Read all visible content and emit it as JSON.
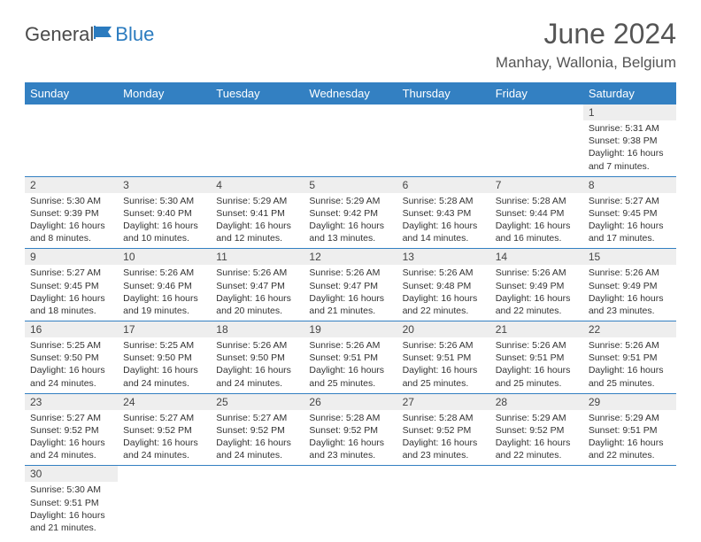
{
  "logo": {
    "text1": "General",
    "text2": "Blue"
  },
  "title": "June 2024",
  "location": "Manhay, Wallonia, Belgium",
  "colors": {
    "header_bg": "#3380c2",
    "header_text": "#ffffff",
    "daynum_bg": "#eeeeee",
    "border": "#3380c2",
    "logo_blue": "#2b7bbf",
    "logo_gray": "#4a4a4a"
  },
  "weekdays": [
    "Sunday",
    "Monday",
    "Tuesday",
    "Wednesday",
    "Thursday",
    "Friday",
    "Saturday"
  ],
  "weeks": [
    [
      null,
      null,
      null,
      null,
      null,
      null,
      {
        "n": "1",
        "sr": "Sunrise: 5:31 AM",
        "ss": "Sunset: 9:38 PM",
        "dl": "Daylight: 16 hours and 7 minutes."
      }
    ],
    [
      {
        "n": "2",
        "sr": "Sunrise: 5:30 AM",
        "ss": "Sunset: 9:39 PM",
        "dl": "Daylight: 16 hours and 8 minutes."
      },
      {
        "n": "3",
        "sr": "Sunrise: 5:30 AM",
        "ss": "Sunset: 9:40 PM",
        "dl": "Daylight: 16 hours and 10 minutes."
      },
      {
        "n": "4",
        "sr": "Sunrise: 5:29 AM",
        "ss": "Sunset: 9:41 PM",
        "dl": "Daylight: 16 hours and 12 minutes."
      },
      {
        "n": "5",
        "sr": "Sunrise: 5:29 AM",
        "ss": "Sunset: 9:42 PM",
        "dl": "Daylight: 16 hours and 13 minutes."
      },
      {
        "n": "6",
        "sr": "Sunrise: 5:28 AM",
        "ss": "Sunset: 9:43 PM",
        "dl": "Daylight: 16 hours and 14 minutes."
      },
      {
        "n": "7",
        "sr": "Sunrise: 5:28 AM",
        "ss": "Sunset: 9:44 PM",
        "dl": "Daylight: 16 hours and 16 minutes."
      },
      {
        "n": "8",
        "sr": "Sunrise: 5:27 AM",
        "ss": "Sunset: 9:45 PM",
        "dl": "Daylight: 16 hours and 17 minutes."
      }
    ],
    [
      {
        "n": "9",
        "sr": "Sunrise: 5:27 AM",
        "ss": "Sunset: 9:45 PM",
        "dl": "Daylight: 16 hours and 18 minutes."
      },
      {
        "n": "10",
        "sr": "Sunrise: 5:26 AM",
        "ss": "Sunset: 9:46 PM",
        "dl": "Daylight: 16 hours and 19 minutes."
      },
      {
        "n": "11",
        "sr": "Sunrise: 5:26 AM",
        "ss": "Sunset: 9:47 PM",
        "dl": "Daylight: 16 hours and 20 minutes."
      },
      {
        "n": "12",
        "sr": "Sunrise: 5:26 AM",
        "ss": "Sunset: 9:47 PM",
        "dl": "Daylight: 16 hours and 21 minutes."
      },
      {
        "n": "13",
        "sr": "Sunrise: 5:26 AM",
        "ss": "Sunset: 9:48 PM",
        "dl": "Daylight: 16 hours and 22 minutes."
      },
      {
        "n": "14",
        "sr": "Sunrise: 5:26 AM",
        "ss": "Sunset: 9:49 PM",
        "dl": "Daylight: 16 hours and 22 minutes."
      },
      {
        "n": "15",
        "sr": "Sunrise: 5:26 AM",
        "ss": "Sunset: 9:49 PM",
        "dl": "Daylight: 16 hours and 23 minutes."
      }
    ],
    [
      {
        "n": "16",
        "sr": "Sunrise: 5:25 AM",
        "ss": "Sunset: 9:50 PM",
        "dl": "Daylight: 16 hours and 24 minutes."
      },
      {
        "n": "17",
        "sr": "Sunrise: 5:25 AM",
        "ss": "Sunset: 9:50 PM",
        "dl": "Daylight: 16 hours and 24 minutes."
      },
      {
        "n": "18",
        "sr": "Sunrise: 5:26 AM",
        "ss": "Sunset: 9:50 PM",
        "dl": "Daylight: 16 hours and 24 minutes."
      },
      {
        "n": "19",
        "sr": "Sunrise: 5:26 AM",
        "ss": "Sunset: 9:51 PM",
        "dl": "Daylight: 16 hours and 25 minutes."
      },
      {
        "n": "20",
        "sr": "Sunrise: 5:26 AM",
        "ss": "Sunset: 9:51 PM",
        "dl": "Daylight: 16 hours and 25 minutes."
      },
      {
        "n": "21",
        "sr": "Sunrise: 5:26 AM",
        "ss": "Sunset: 9:51 PM",
        "dl": "Daylight: 16 hours and 25 minutes."
      },
      {
        "n": "22",
        "sr": "Sunrise: 5:26 AM",
        "ss": "Sunset: 9:51 PM",
        "dl": "Daylight: 16 hours and 25 minutes."
      }
    ],
    [
      {
        "n": "23",
        "sr": "Sunrise: 5:27 AM",
        "ss": "Sunset: 9:52 PM",
        "dl": "Daylight: 16 hours and 24 minutes."
      },
      {
        "n": "24",
        "sr": "Sunrise: 5:27 AM",
        "ss": "Sunset: 9:52 PM",
        "dl": "Daylight: 16 hours and 24 minutes."
      },
      {
        "n": "25",
        "sr": "Sunrise: 5:27 AM",
        "ss": "Sunset: 9:52 PM",
        "dl": "Daylight: 16 hours and 24 minutes."
      },
      {
        "n": "26",
        "sr": "Sunrise: 5:28 AM",
        "ss": "Sunset: 9:52 PM",
        "dl": "Daylight: 16 hours and 23 minutes."
      },
      {
        "n": "27",
        "sr": "Sunrise: 5:28 AM",
        "ss": "Sunset: 9:52 PM",
        "dl": "Daylight: 16 hours and 23 minutes."
      },
      {
        "n": "28",
        "sr": "Sunrise: 5:29 AM",
        "ss": "Sunset: 9:52 PM",
        "dl": "Daylight: 16 hours and 22 minutes."
      },
      {
        "n": "29",
        "sr": "Sunrise: 5:29 AM",
        "ss": "Sunset: 9:51 PM",
        "dl": "Daylight: 16 hours and 22 minutes."
      }
    ],
    [
      {
        "n": "30",
        "sr": "Sunrise: 5:30 AM",
        "ss": "Sunset: 9:51 PM",
        "dl": "Daylight: 16 hours and 21 minutes."
      },
      null,
      null,
      null,
      null,
      null,
      null
    ]
  ]
}
